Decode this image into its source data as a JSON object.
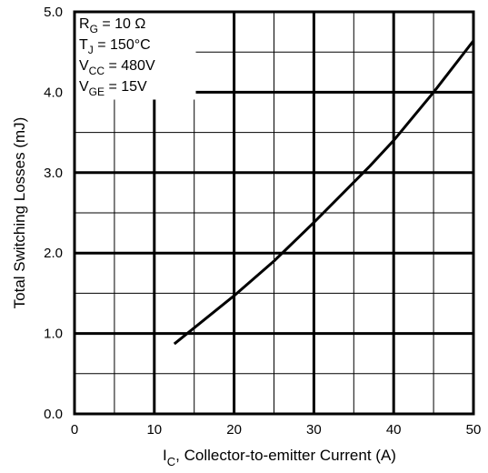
{
  "chart_data": {
    "type": "line",
    "xlabel": ", Collector-to-emitter Current (A)",
    "xlabel_symbol": "I",
    "xlabel_symbol_sub": "C",
    "ylabel": "Total Switching Losses (mJ)",
    "xlim": [
      0,
      50
    ],
    "ylim": [
      0,
      5
    ],
    "x_ticks": [
      "0",
      "10",
      "20",
      "30",
      "40",
      "50"
    ],
    "y_ticks": [
      "0.0",
      "1.0",
      "2.0",
      "3.0",
      "4.0",
      "5.0"
    ],
    "grid": true,
    "series": [
      {
        "x": [
          12.5,
          20,
          25,
          30,
          37,
          40,
          45,
          50
        ],
        "y": [
          0.87,
          1.47,
          1.9,
          2.38,
          3.08,
          3.4,
          4.0,
          4.64
        ]
      }
    ],
    "annotations": [
      {
        "main": "R",
        "sub": "G",
        "rest": "  = 10 Ω"
      },
      {
        "main": "T",
        "sub": "J",
        "rest": "  = 150°C"
      },
      {
        "main": "V",
        "sub": "CC",
        "rest": " = 480V"
      },
      {
        "main": "V",
        "sub": "GE",
        "rest": " = 15V"
      }
    ]
  }
}
